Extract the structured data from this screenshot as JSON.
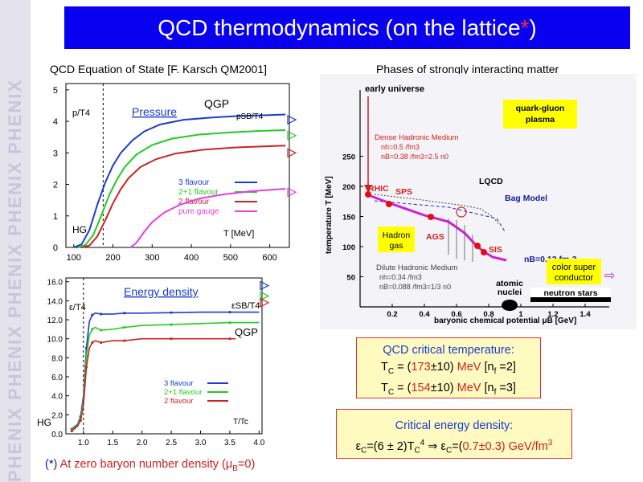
{
  "slide": {
    "title_main": "QCD thermodynamics (on the lattice",
    "title_star": "*",
    "title_close": ")",
    "watermark_text": "PHENIX PHENIX PHENIX PHENIX PHENIX"
  },
  "left_caption": "QCD Equation of State [F. Karsch QM2001]",
  "right_caption": "Phases of strongly interacting matter",
  "footnote": {
    "star": "(*)",
    "text": " At zero baryon number density (",
    "mu": "μ",
    "sub": "B",
    "end": "=0)"
  },
  "colors": {
    "three_flavour": "#1a3ccf",
    "two_plus_one": "#22cc22",
    "two_flavour": "#cc2222",
    "pure_gauge": "#e040e0",
    "title_bg": "#0a00f0",
    "box_bg": "#fffbc0"
  },
  "chart_data": [
    {
      "type": "line",
      "title": "Pressure",
      "ylabel": "p/T4",
      "xlabel": "T [MeV]",
      "xlim": [
        80,
        650
      ],
      "ylim": [
        0,
        5.2
      ],
      "x_ticks": [
        "100",
        "200",
        "300",
        "400",
        "500",
        "600"
      ],
      "y_ticks": [
        "0",
        "1",
        "2",
        "3",
        "4",
        "5"
      ],
      "annotations": [
        "QGP",
        "pSB/T4",
        "HG"
      ],
      "series": [
        {
          "name": "3 flavour",
          "x": [
            100,
            120,
            140,
            160,
            180,
            200,
            220,
            250,
            280,
            320,
            380,
            450,
            520,
            600,
            640
          ],
          "y": [
            0.0,
            0.1,
            0.55,
            1.35,
            2.05,
            2.6,
            3.0,
            3.4,
            3.68,
            3.9,
            4.05,
            4.12,
            4.17,
            4.2,
            4.22
          ]
        },
        {
          "name": "2+1 flavour",
          "x": [
            110,
            130,
            150,
            170,
            190,
            210,
            230,
            260,
            300,
            350,
            420,
            500,
            580,
            640
          ],
          "y": [
            0.0,
            0.08,
            0.4,
            1.0,
            1.65,
            2.15,
            2.55,
            2.95,
            3.25,
            3.45,
            3.58,
            3.65,
            3.7,
            3.72
          ]
        },
        {
          "name": "2 flavour",
          "x": [
            120,
            140,
            160,
            180,
            200,
            220,
            240,
            270,
            310,
            360,
            430,
            510,
            590,
            640
          ],
          "y": [
            0.0,
            0.06,
            0.35,
            0.85,
            1.4,
            1.85,
            2.2,
            2.55,
            2.8,
            2.98,
            3.1,
            3.17,
            3.21,
            3.23
          ]
        },
        {
          "name": "pure gauge",
          "x": [
            245,
            260,
            280,
            300,
            330,
            370,
            420,
            480,
            550,
            640
          ],
          "y": [
            0.0,
            0.15,
            0.5,
            0.8,
            1.1,
            1.35,
            1.55,
            1.68,
            1.78,
            1.86
          ]
        }
      ],
      "sb_limits": [
        4.05,
        3.55,
        3.0,
        1.75
      ],
      "tc_mev": 175
    },
    {
      "type": "line",
      "title": "Energy density",
      "ylabel": "ε/T4",
      "xlabel": "T/Tc",
      "xlim": [
        0.7,
        4.05
      ],
      "ylim": [
        0,
        16.4
      ],
      "x_ticks": [
        "1.0",
        "1.5",
        "2.0",
        "2.5",
        "3.0",
        "3.5",
        "4.0"
      ],
      "y_ticks": [
        "0.0",
        "2.0",
        "4.0",
        "6.0",
        "8.0",
        "10.0",
        "12.0",
        "14.0",
        "16.0"
      ],
      "annotations": [
        "εSB/T4",
        "QGP",
        "HG"
      ],
      "series": [
        {
          "name": "3 flavour",
          "x": [
            0.8,
            0.9,
            0.95,
            1.0,
            1.05,
            1.1,
            1.15,
            1.2,
            1.3,
            1.5,
            1.7,
            2.0,
            2.5,
            3.0,
            3.5,
            4.0
          ],
          "y": [
            0.5,
            1.0,
            1.8,
            4.0,
            9.0,
            11.8,
            12.5,
            12.7,
            12.6,
            12.6,
            12.7,
            12.7,
            12.75,
            12.8,
            12.8,
            12.8
          ]
        },
        {
          "name": "2+1 flavour",
          "x": [
            0.8,
            0.9,
            0.95,
            1.0,
            1.05,
            1.1,
            1.15,
            1.2,
            1.3,
            1.5,
            1.7,
            2.0,
            2.5,
            3.0,
            3.5,
            4.0
          ],
          "y": [
            0.4,
            0.9,
            1.6,
            3.5,
            8.2,
            10.4,
            11.0,
            11.2,
            10.9,
            11.0,
            11.2,
            11.4,
            11.5,
            11.6,
            11.7,
            11.7
          ]
        },
        {
          "name": "2 flavour",
          "x": [
            0.8,
            0.9,
            0.95,
            1.0,
            1.05,
            1.1,
            1.15,
            1.2,
            1.3,
            1.5,
            1.7,
            2.0,
            2.5,
            3.0,
            3.5,
            3.6
          ],
          "y": [
            0.3,
            0.8,
            1.4,
            3.0,
            7.0,
            9.0,
            9.6,
            9.8,
            9.6,
            9.8,
            9.8,
            10.0,
            10.0,
            10.0,
            10.0,
            10.0
          ]
        }
      ],
      "sb_limits": [
        15.6,
        14.5,
        13.8
      ],
      "tc_ratio": 1.0
    }
  ],
  "boxes": {
    "crit_temp": {
      "label": "QCD critical temperature:",
      "line1_pre": "T",
      "line1_sub": "C",
      "line1_mid": " = (",
      "line1_val": "173",
      "line1_pm": "±",
      "line1_err": "10)",
      "line1_unit": " MeV",
      "line1_nf": " [n",
      "line1_nfsub": "f",
      "line1_end": " =2]",
      "line2_val": "154",
      "line2_end": " =3]"
    },
    "crit_energy": {
      "label": "Critical energy density:",
      "eps": "ε",
      "sub_c": "C",
      "expr1": "=(6 ± 2)T",
      "exp4": "4",
      "implies": " ⇒ ",
      "expr2_pre": "=(",
      "expr2_val": "0.7±0.3",
      "expr2_post": ") GeV/fm",
      "exp3": "3"
    }
  },
  "phase_diagram": {
    "early_universe": "early universe",
    "qgp_label_1": "quark-gluon",
    "qgp_label_2": "plasma",
    "dense_medium": "Dense Hadronic Medium",
    "dense_nh": "nh=0.5 /fm3",
    "dense_nb": "nB=0.38 /fm3=2.5 n0",
    "lqcd": "LQCD",
    "bag_model": "Bag Model",
    "rhic": "RHIC",
    "sps": "SPS",
    "ags": "AGS",
    "sis": "SIS",
    "hadron_gas_1": "Hadron",
    "hadron_gas_2": "gas",
    "nb_label": "nB=0.12 fm-3",
    "dilute_medium": "Dilute Hadronic Medium",
    "dilute_nh": "nh=0.34 /fm3",
    "dilute_nb": "nB=0.088 /fm3=1/3 n0",
    "atomic_nuclei_1": "atomic",
    "atomic_nuclei_2": "nuclei",
    "neutron_stars": "neutron stars",
    "color_super_1": "color super",
    "color_super_2": "conductor",
    "arrow": "⇨",
    "ylabel": "temperature T [MeV]",
    "xlabel": "baryonic chemical potential μB [GeV]",
    "x_ticks": [
      "0.2",
      "0.4",
      "0.6",
      "0.8",
      "1",
      "1.2",
      "1.4"
    ],
    "y_ticks": [
      "50",
      "100",
      "150",
      "200",
      "250"
    ]
  }
}
